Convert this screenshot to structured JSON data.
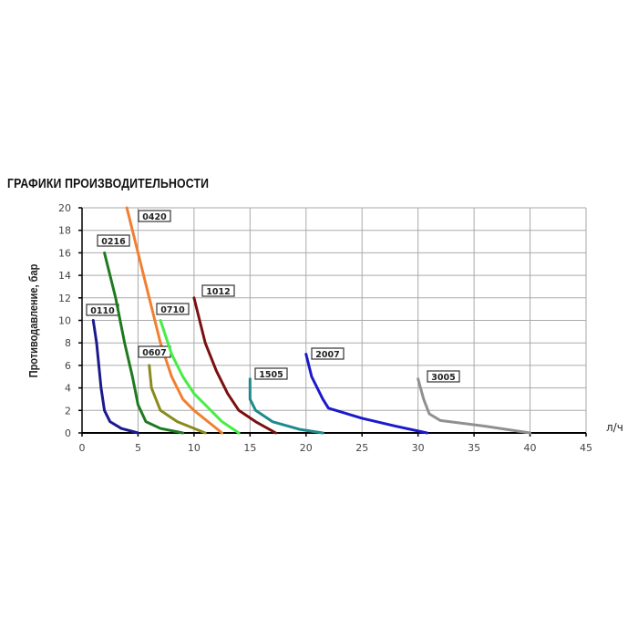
{
  "chart_data": {
    "type": "line",
    "title": "ГРАФИКИ ПРОИЗВОДИТЕЛЬНОСТИ",
    "xlabel": "л/ч",
    "ylabel": "Противодавление, бар",
    "xlim": [
      0,
      45
    ],
    "ylim": [
      0,
      20
    ],
    "xticks": [
      0,
      5,
      10,
      15,
      20,
      25,
      30,
      35,
      40,
      45
    ],
    "yticks": [
      0,
      2,
      4,
      6,
      8,
      10,
      12,
      14,
      16,
      18,
      20
    ],
    "grid": true,
    "series": [
      {
        "name": "0110",
        "color": "#1a1a8c",
        "points": [
          [
            1,
            10
          ],
          [
            1.3,
            8
          ],
          [
            1.7,
            4
          ],
          [
            2,
            2
          ],
          [
            2.5,
            1
          ],
          [
            3.5,
            0.4
          ],
          [
            5,
            0
          ]
        ]
      },
      {
        "name": "0216",
        "color": "#1e7a1e",
        "points": [
          [
            2,
            16
          ],
          [
            3,
            12
          ],
          [
            3.8,
            8
          ],
          [
            4.5,
            5
          ],
          [
            5,
            2.5
          ],
          [
            5.7,
            1
          ],
          [
            7,
            0.4
          ],
          [
            9,
            0
          ]
        ]
      },
      {
        "name": "0420",
        "color": "#f08030",
        "points": [
          [
            4,
            20
          ],
          [
            5,
            16
          ],
          [
            6,
            12
          ],
          [
            7,
            8
          ],
          [
            8,
            5
          ],
          [
            9,
            3
          ],
          [
            10,
            2
          ],
          [
            11.5,
            0.8
          ],
          [
            12.5,
            0
          ]
        ]
      },
      {
        "name": "0607",
        "color": "#8a8a20",
        "points": [
          [
            6,
            6
          ],
          [
            6.2,
            4
          ],
          [
            7,
            2
          ],
          [
            8.5,
            1
          ],
          [
            11,
            0
          ]
        ]
      },
      {
        "name": "0710",
        "color": "#44ee44",
        "points": [
          [
            7,
            10
          ],
          [
            8,
            7
          ],
          [
            9,
            5
          ],
          [
            10,
            3.5
          ],
          [
            11,
            2.5
          ],
          [
            12.5,
            1
          ],
          [
            14,
            0
          ]
        ]
      },
      {
        "name": "1012",
        "color": "#7a1010",
        "points": [
          [
            10,
            12
          ],
          [
            11,
            8
          ],
          [
            12,
            5.5
          ],
          [
            13,
            3.5
          ],
          [
            14,
            2
          ],
          [
            15.5,
            1
          ],
          [
            17.3,
            0
          ]
        ]
      },
      {
        "name": "1505",
        "color": "#1e8a8a",
        "points": [
          [
            15,
            4.8
          ],
          [
            15,
            3
          ],
          [
            15.5,
            2
          ],
          [
            17,
            1
          ],
          [
            19.5,
            0.3
          ],
          [
            21.5,
            0
          ]
        ]
      },
      {
        "name": "2007",
        "color": "#1a1acc",
        "points": [
          [
            20,
            7
          ],
          [
            20.5,
            5
          ],
          [
            21.5,
            3
          ],
          [
            22,
            2.2
          ],
          [
            25,
            1.3
          ],
          [
            28,
            0.6
          ],
          [
            30.8,
            0
          ]
        ]
      },
      {
        "name": "3005",
        "color": "#909090",
        "points": [
          [
            30,
            4.8
          ],
          [
            30.5,
            3
          ],
          [
            31,
            1.7
          ],
          [
            32,
            1.1
          ],
          [
            36,
            0.6
          ],
          [
            40,
            0
          ]
        ]
      }
    ]
  }
}
